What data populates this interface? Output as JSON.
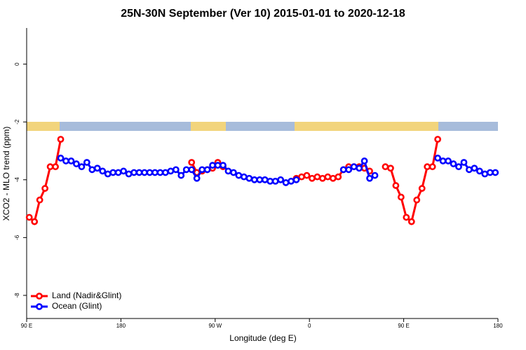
{
  "chart_data": {
    "type": "line",
    "title": "25N-30N September (Ver 10)   2015-01-01 to 2020-12-18",
    "x_label": "Longitude (deg E)",
    "y_label": "XCO2 - MLO trend (ppm)",
    "xlim": [
      90,
      540
    ],
    "ylim": [
      -8.8,
      1.25
    ],
    "xticks": [
      {
        "value": 90,
        "label": "90 E"
      },
      180,
      {
        "value": 270,
        "label": "90 W"
      },
      {
        "value": 360,
        "label": "0"
      },
      {
        "value": 450,
        "label": "90 E"
      },
      {
        "value": 540,
        "label": "180"
      }
    ],
    "yticks": [
      0,
      -2,
      -4,
      -6,
      -8
    ],
    "legend": "bottom-left",
    "x": [
      92.5,
      97.5,
      102.5,
      107.5,
      112.5,
      117.5,
      122.5,
      127.5,
      132.5,
      137.5,
      142.5,
      147.5,
      152.5,
      157.5,
      162.5,
      167.5,
      172.5,
      177.5,
      182.5,
      187.5,
      192.5,
      197.5,
      202.5,
      207.5,
      212.5,
      217.5,
      222.5,
      227.5,
      232.5,
      237.5,
      242.5,
      247.5,
      252.5,
      257.5,
      262.5,
      267.5,
      272.5,
      277.5,
      282.5,
      287.5,
      292.5,
      297.5,
      302.5,
      307.5,
      312.5,
      317.5,
      322.5,
      327.5,
      332.5,
      337.5,
      342.5,
      347.5,
      352.5,
      357.5,
      362.5,
      367.5,
      372.5,
      377.5,
      382.5,
      387.5,
      392.5,
      397.5,
      402.5,
      407.5,
      412.5,
      417.5,
      422.5,
      427.5,
      432.5,
      437.5,
      442.5,
      447.5,
      452.5,
      457.5,
      462.5,
      467.5,
      472.5,
      477.5,
      482.5,
      487.5,
      492.5,
      497.5,
      502.5,
      507.5,
      512.5,
      517.5,
      522.5,
      527.5,
      532.5,
      537.5
    ],
    "series": [
      {
        "name": "Land (Nadir&Glint)",
        "color": "#ff0000",
        "values": [
          -5.3,
          -5.45,
          -4.7,
          -4.3,
          -3.55,
          -3.55,
          -2.6,
          null,
          null,
          null,
          null,
          null,
          null,
          null,
          null,
          null,
          null,
          null,
          null,
          null,
          null,
          null,
          null,
          null,
          null,
          null,
          null,
          null,
          null,
          null,
          null,
          -3.4,
          -3.75,
          -3.7,
          -3.65,
          -3.6,
          -3.4,
          -3.55,
          null,
          null,
          null,
          null,
          null,
          null,
          null,
          null,
          null,
          null,
          null,
          null,
          null,
          -3.95,
          -3.9,
          -3.85,
          -3.95,
          -3.9,
          -3.95,
          -3.9,
          -3.95,
          -3.9,
          -3.65,
          -3.55,
          -3.55,
          -3.55,
          -3.6,
          -3.7,
          null,
          null,
          -3.55,
          -3.6,
          -4.2,
          -4.6,
          -5.3,
          -5.45,
          -4.7,
          -4.3,
          -3.55,
          -3.55,
          -2.6,
          null,
          null,
          null,
          null,
          null,
          null,
          null,
          null,
          null,
          null,
          null
        ]
      },
      {
        "name": "Ocean (Glint)",
        "color": "#0000ff",
        "values": [
          null,
          null,
          null,
          null,
          null,
          null,
          -3.25,
          -3.35,
          -3.35,
          -3.45,
          -3.55,
          -3.4,
          -3.65,
          -3.6,
          -3.7,
          -3.8,
          -3.75,
          -3.75,
          -3.7,
          -3.8,
          -3.75,
          -3.75,
          -3.75,
          -3.75,
          -3.75,
          -3.75,
          -3.75,
          -3.7,
          -3.65,
          -3.85,
          -3.65,
          -3.65,
          -3.95,
          -3.65,
          -3.65,
          -3.5,
          -3.5,
          -3.5,
          -3.7,
          -3.75,
          -3.85,
          -3.9,
          -3.95,
          -4.0,
          -4.0,
          -4.0,
          -4.05,
          -4.05,
          -4.0,
          -4.1,
          -4.05,
          -4.0,
          null,
          null,
          null,
          null,
          null,
          null,
          null,
          null,
          -3.65,
          -3.65,
          -3.55,
          -3.6,
          -3.35,
          -3.95,
          -3.85,
          null,
          null,
          null,
          null,
          null,
          null,
          null,
          null,
          null,
          null,
          null,
          -3.25,
          -3.35,
          -3.35,
          -3.45,
          -3.55,
          -3.4,
          -3.65,
          -3.6,
          -3.7,
          -3.8,
          -3.75,
          -3.75
        ]
      }
    ]
  }
}
